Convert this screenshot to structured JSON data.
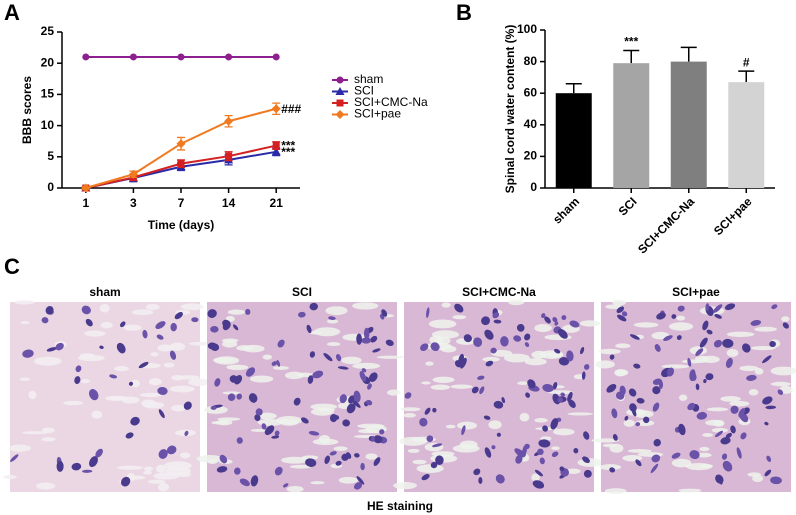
{
  "chart_data": [
    {
      "panel": "A",
      "type": "line",
      "xlabel": "Time (days)",
      "ylabel": "BBB scores",
      "categories": [
        "1",
        "3",
        "7",
        "14",
        "21"
      ],
      "ylim": [
        0,
        25
      ],
      "yticks": [
        0,
        5,
        10,
        15,
        20,
        25
      ],
      "series": [
        {
          "name": "sham",
          "color": "#8e1f8e",
          "marker": "circle",
          "values": [
            21,
            21,
            21,
            21,
            21
          ]
        },
        {
          "name": "SCI",
          "color": "#2a2aa8",
          "marker": "triangle",
          "values": [
            0,
            1.6,
            3.4,
            4.5,
            5.8
          ],
          "errors": [
            0.2,
            0.6,
            0.6,
            0.8,
            0.6
          ],
          "annotation": "***"
        },
        {
          "name": "SCI+CMC-Na",
          "color": "#d42020",
          "marker": "square",
          "values": [
            0,
            1.7,
            3.9,
            5.1,
            6.8
          ],
          "errors": [
            0.2,
            0.5,
            0.6,
            0.7,
            0.6
          ],
          "annotation": "***"
        },
        {
          "name": "SCI+pae",
          "color": "#f07a20",
          "marker": "diamond",
          "values": [
            0,
            2.2,
            7.1,
            10.7,
            12.7
          ],
          "errors": [
            0.2,
            0.5,
            1,
            0.9,
            0.9
          ],
          "annotation": "###"
        }
      ]
    },
    {
      "panel": "B",
      "type": "bar",
      "ylabel": "Spinal cord water content (%)",
      "categories": [
        "sham",
        "SCI",
        "SCI+CMC-Na",
        "SCI+pae"
      ],
      "values": [
        60,
        79,
        80,
        67
      ],
      "errors": [
        6,
        8,
        9,
        7
      ],
      "colors": [
        "#000000",
        "#a5a5a5",
        "#7f7f7f",
        "#d3d3d3"
      ],
      "annotations": [
        null,
        "***",
        null,
        "#"
      ],
      "ylim": [
        0,
        100
      ],
      "yticks": [
        0,
        20,
        40,
        60,
        80,
        100
      ]
    }
  ],
  "panel_c": {
    "label": "C",
    "images": [
      "sham",
      "SCI",
      "SCI+CMC-Na",
      "SCI+pae"
    ],
    "caption": "HE staining"
  }
}
